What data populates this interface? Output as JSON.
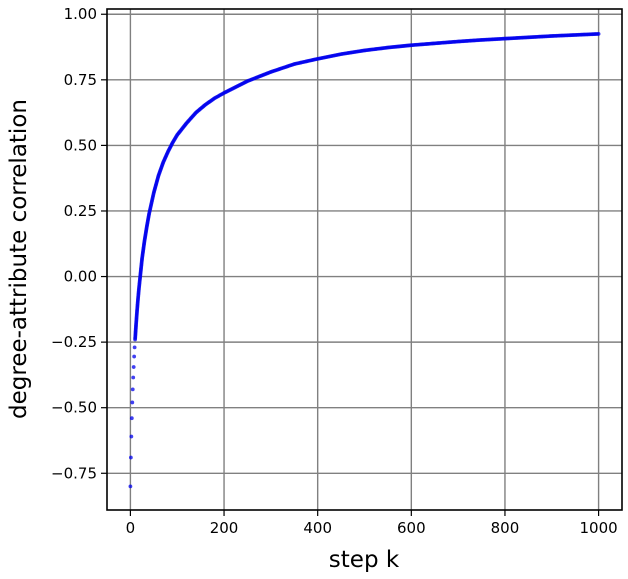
{
  "chart_data": {
    "type": "scatter",
    "title": "",
    "xlabel": "step k",
    "ylabel": "degree-attribute correlation",
    "xlim": [
      -50,
      1050
    ],
    "ylim": [
      -0.89,
      1.02
    ],
    "x_ticks": [
      0,
      200,
      400,
      600,
      800,
      1000
    ],
    "x_tick_labels": [
      "0",
      "200",
      "400",
      "600",
      "800",
      "1000"
    ],
    "y_ticks": [
      -0.75,
      -0.5,
      -0.25,
      0.0,
      0.25,
      0.5,
      0.75,
      1.0
    ],
    "y_tick_labels": [
      "−0.75",
      "−0.50",
      "−0.25",
      "0.00",
      "0.25",
      "0.50",
      "0.75",
      "1.00"
    ],
    "grid": true,
    "legend": "none",
    "marker_color": "#0000ee",
    "series": [
      {
        "x": [
          0,
          1,
          2,
          3,
          4,
          5,
          6,
          7,
          8,
          9,
          10,
          12,
          14,
          16,
          18,
          20,
          25,
          30,
          35,
          40,
          45,
          50,
          60,
          70,
          80,
          90,
          100,
          120,
          140,
          160,
          180,
          200,
          250,
          300,
          350,
          400,
          450,
          500,
          550,
          600,
          650,
          700,
          750,
          800,
          850,
          900,
          950,
          1000
        ],
        "y": [
          -0.8,
          -0.69,
          -0.61,
          -0.54,
          -0.48,
          -0.43,
          -0.385,
          -0.345,
          -0.305,
          -0.27,
          -0.24,
          -0.185,
          -0.135,
          -0.09,
          -0.05,
          -0.015,
          0.07,
          0.135,
          0.19,
          0.24,
          0.28,
          0.32,
          0.385,
          0.435,
          0.475,
          0.51,
          0.54,
          0.585,
          0.625,
          0.655,
          0.68,
          0.7,
          0.745,
          0.78,
          0.81,
          0.83,
          0.848,
          0.862,
          0.873,
          0.882,
          0.889,
          0.896,
          0.902,
          0.907,
          0.912,
          0.917,
          0.921,
          0.925
        ]
      }
    ]
  }
}
